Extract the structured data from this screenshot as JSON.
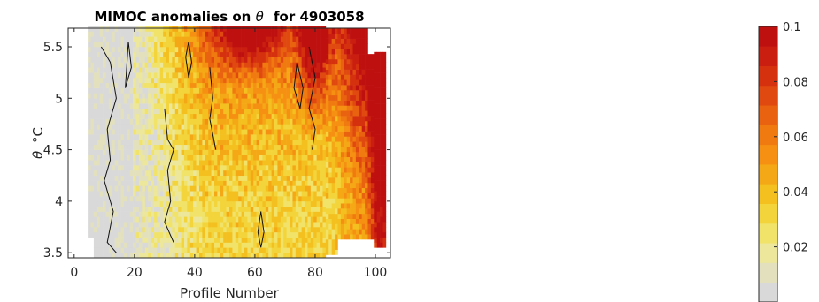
{
  "chart_data": {
    "type": "heatmap",
    "title": "MIMOC anomalies on",
    "title_symbol": "θ",
    "title_suffix": "for 4903058",
    "xlabel": "Profile Number",
    "ylabel_symbol": "θ",
    "ylabel_unit": "°C",
    "xlim": [
      -2,
      105
    ],
    "ylim": [
      3.45,
      5.68
    ],
    "xticks": [
      0,
      20,
      40,
      60,
      80,
      100
    ],
    "yticks": [
      3.5,
      4,
      4.5,
      5,
      5.5
    ],
    "x_tick_labels": [
      "0",
      "20",
      "40",
      "60",
      "80",
      "100"
    ],
    "y_tick_labels": [
      "3.5",
      "4",
      "4.5",
      "5",
      "5.5"
    ],
    "colorbar": {
      "range": [
        0,
        0.1
      ],
      "ticks": [
        0.02,
        0.04,
        0.06,
        0.08,
        0.1
      ],
      "tick_labels": [
        "0.02",
        "0.04",
        "0.06",
        "0.08",
        "0.1"
      ],
      "colors": [
        "#d9d9d9",
        "#e3e1bd",
        "#ece79a",
        "#f1e26a",
        "#f3d43a",
        "#f3c020",
        "#f5a815",
        "#f59012",
        "#f07a10",
        "#e9620f",
        "#e04a10",
        "#d5310f",
        "#c91e10",
        "#bf1010"
      ]
    },
    "profile_range": [
      5,
      103
    ],
    "grid": false,
    "contours": "black contour lines at low anomaly values"
  }
}
